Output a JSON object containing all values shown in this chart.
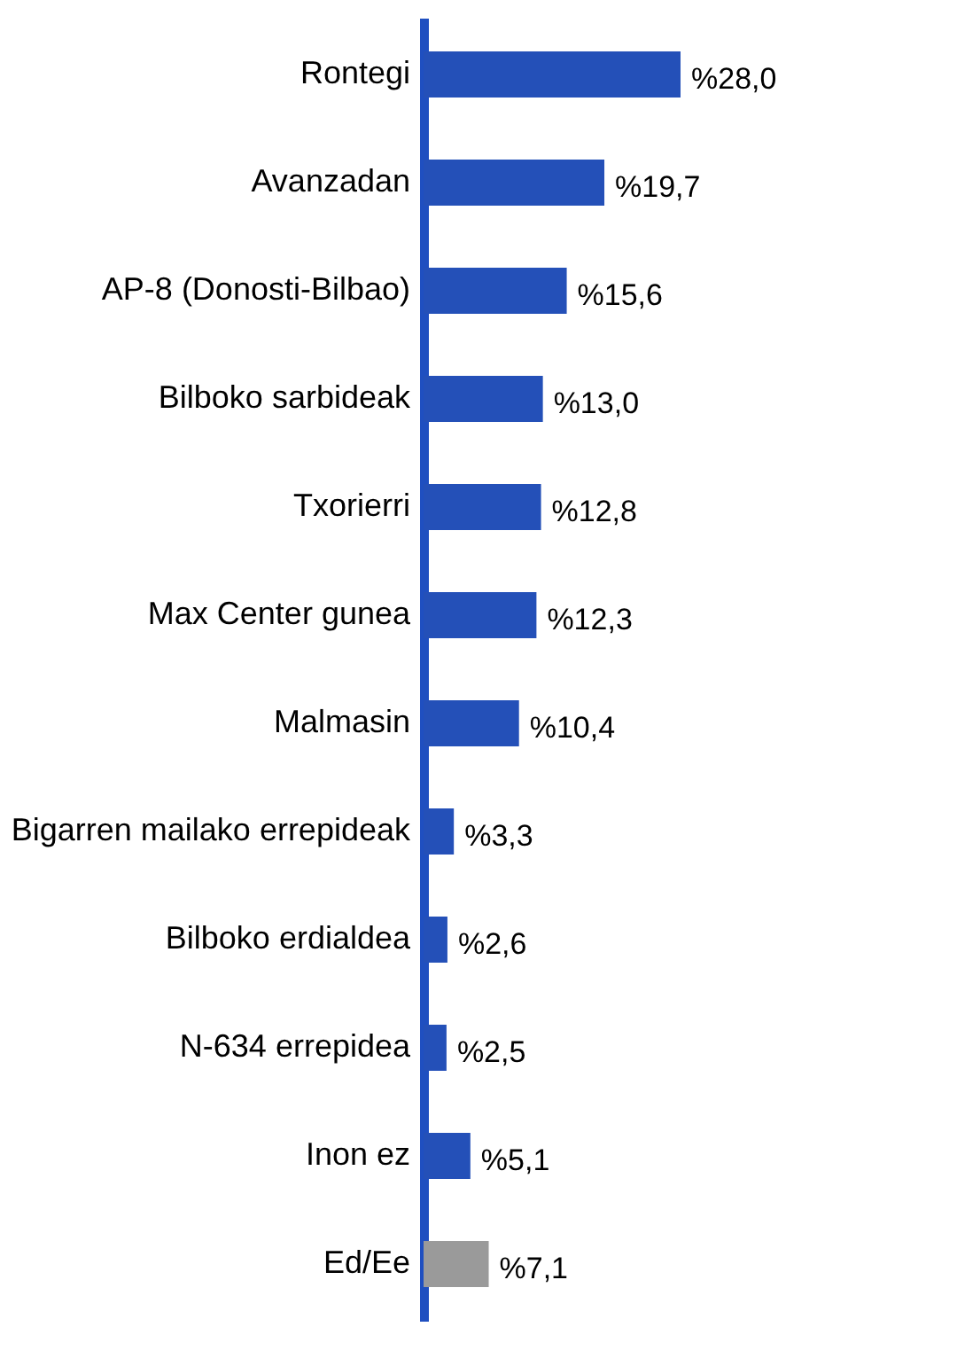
{
  "chart_data": {
    "type": "bar",
    "orientation": "horizontal",
    "categories": [
      "Rontegi",
      "Avanzadan",
      "AP-8 (Donosti-Bilbao)",
      "Bilboko sarbideak",
      "Txorierri",
      "Max Center gunea",
      "Malmasin",
      "Bigarren mailako errepideak",
      "Bilboko erdialdea",
      "N-634 errepidea",
      "Inon ez",
      "Ed/Ee"
    ],
    "values": [
      28.0,
      19.7,
      15.6,
      13.0,
      12.8,
      12.3,
      10.4,
      3.3,
      2.6,
      2.5,
      5.1,
      7.1
    ],
    "colors": [
      "#2450b8",
      "#2450b8",
      "#2450b8",
      "#2450b8",
      "#2450b8",
      "#2450b8",
      "#2450b8",
      "#2450b8",
      "#2450b8",
      "#2450b8",
      "#2450b8",
      "#9a9a9a"
    ],
    "value_labels": [
      "%28,0",
      "%19,7",
      "%15,6",
      "%13,0",
      "%12,8",
      "%12,3",
      "%10,4",
      "%3,3",
      "%2,6",
      "%2,5",
      "%5,1",
      "%7,1"
    ],
    "grid": false
  }
}
